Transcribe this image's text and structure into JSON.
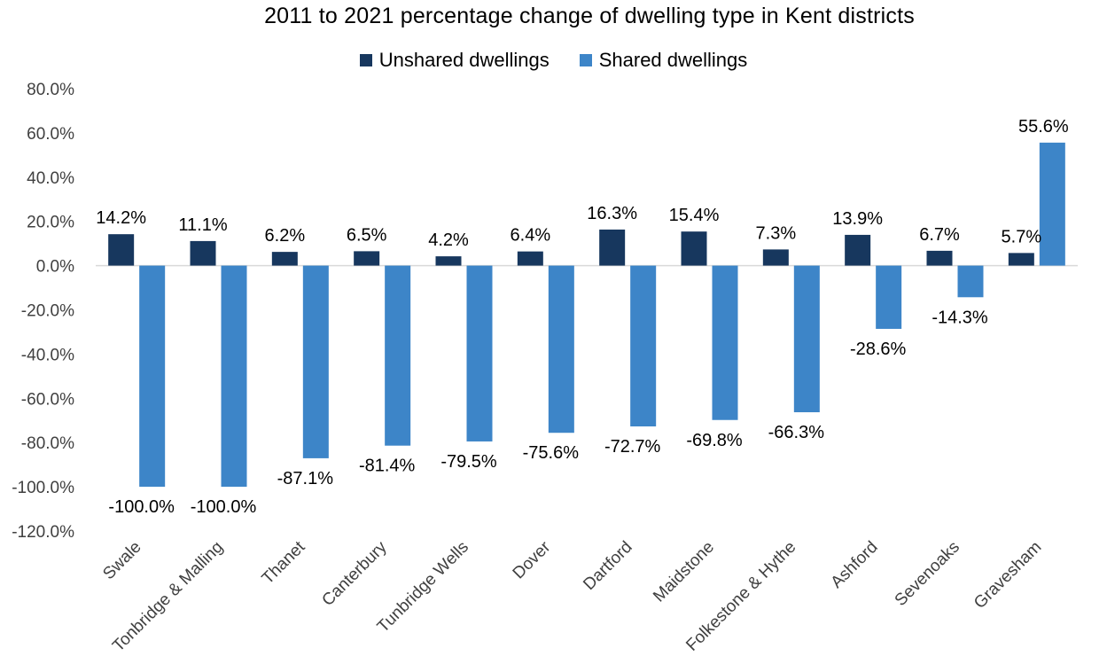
{
  "chart_data": {
    "type": "bar",
    "title": "2011 to 2021 percentage change of dwelling type in Kent districts",
    "categories": [
      "Swale",
      "Tonbridge & Malling",
      "Thanet",
      "Canterbury",
      "Tunbridge Wells",
      "Dover",
      "Dartford",
      "Maidstone",
      "Folkestone & Hythe",
      "Ashford",
      "Sevenoaks",
      "Gravesham"
    ],
    "series": [
      {
        "name": "Unshared dwellings",
        "color": "#17375e",
        "values": [
          14.2,
          11.1,
          6.2,
          6.5,
          4.2,
          6.4,
          16.3,
          15.4,
          7.3,
          13.9,
          6.7,
          5.7
        ],
        "labels": [
          "14.2%",
          "11.1%",
          "6.2%",
          "6.5%",
          "4.2%",
          "6.4%",
          "16.3%",
          "15.4%",
          "7.3%",
          "13.9%",
          "6.7%",
          "5.7%"
        ]
      },
      {
        "name": "Shared dwellings",
        "color": "#3d85c8",
        "values": [
          -100.0,
          -100.0,
          -87.1,
          -81.4,
          -79.5,
          -75.6,
          -72.7,
          -69.8,
          -66.3,
          -28.6,
          -14.3,
          55.6
        ],
        "labels": [
          "-100.0%",
          "-100.0%",
          "-87.1%",
          "-81.4%",
          "-79.5%",
          "-75.6%",
          "-72.7%",
          "-69.8%",
          "-66.3%",
          "-28.6%",
          "-14.3%",
          "55.6%"
        ]
      }
    ],
    "ylim": [
      -120,
      80
    ],
    "yticks": [
      80,
      60,
      40,
      20,
      0,
      -20,
      -40,
      -60,
      -80,
      -100,
      -120
    ],
    "ytick_labels": [
      "80.0%",
      "60.0%",
      "40.0%",
      "20.0%",
      "0.0%",
      "-20.0%",
      "-40.0%",
      "-60.0%",
      "-80.0%",
      "-100.0%",
      "-120.0%"
    ],
    "xlabel": "",
    "ylabel": "",
    "legend": "top",
    "grid": false
  }
}
